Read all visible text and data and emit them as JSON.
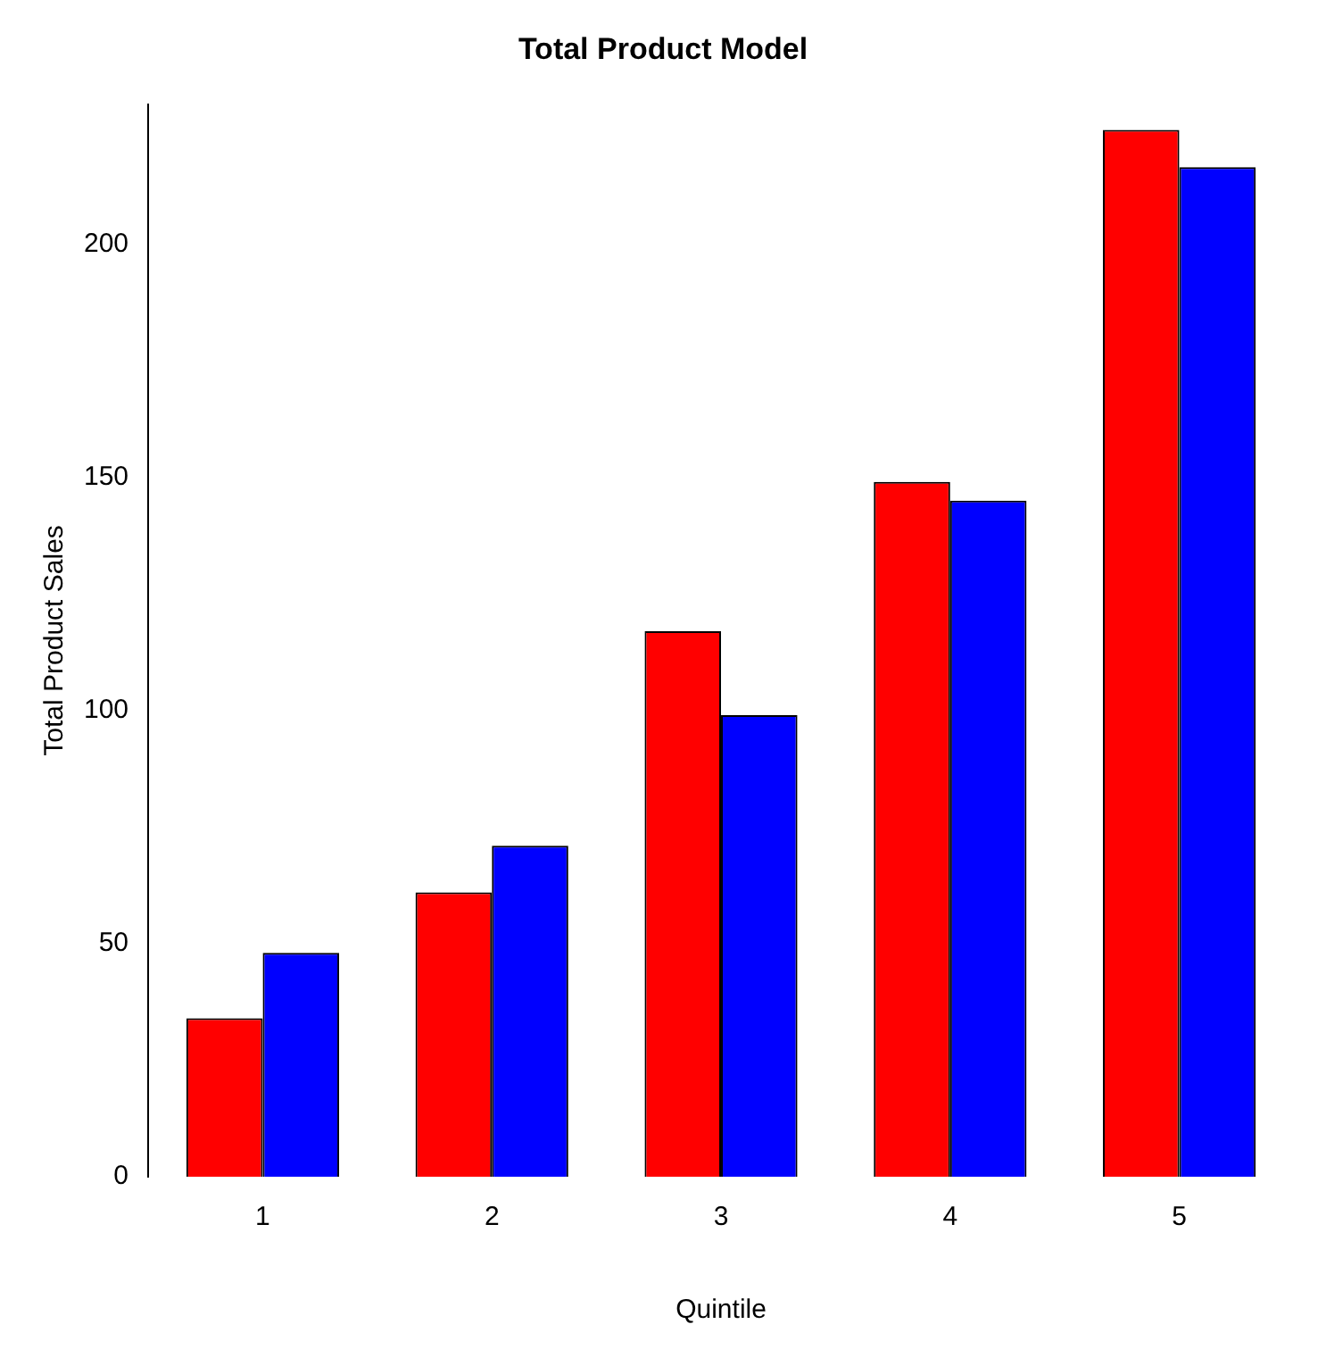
{
  "chart_data": {
    "type": "bar",
    "title": "Total Product Model",
    "xlabel": "Quintile",
    "ylabel": "Total Product Sales",
    "categories": [
      "1",
      "2",
      "3",
      "4",
      "5"
    ],
    "series": [
      {
        "color": "#ff0000",
        "values": [
          34,
          61,
          117,
          149,
          224.5
        ]
      },
      {
        "color": "#0000ff",
        "values": [
          48,
          71,
          99,
          145,
          216.5
        ]
      }
    ],
    "ylim": [
      0,
      230
    ],
    "yticks": [
      0,
      50,
      100,
      150,
      200
    ],
    "grid": false,
    "legend": false
  }
}
